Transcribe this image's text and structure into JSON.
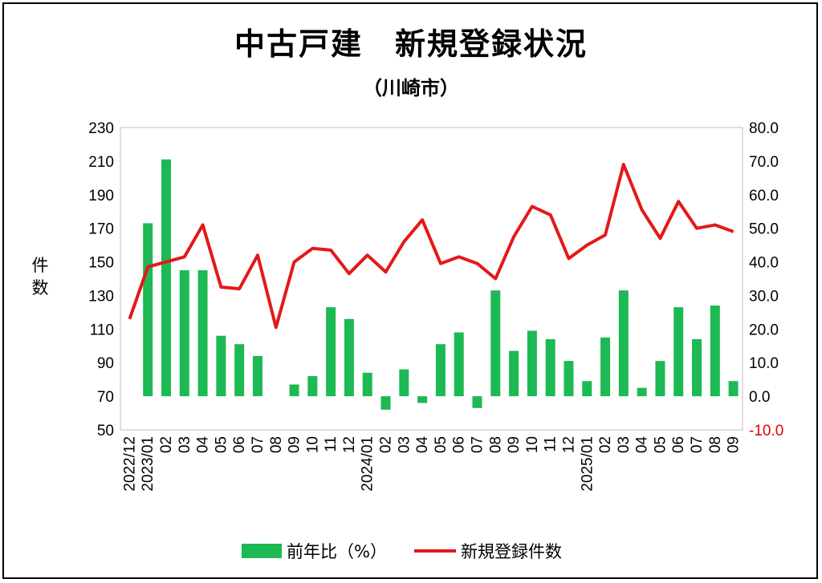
{
  "title": "中古戸建　新規登録状況",
  "subtitle": "（川崎市）",
  "colors": {
    "bar": "#1db954",
    "line": "#e31919",
    "negative_tick": "#e00000"
  },
  "chart_data": {
    "type": "bar+line",
    "categories": [
      "2022/12",
      "2023/01",
      "02",
      "03",
      "04",
      "05",
      "06",
      "07",
      "08",
      "09",
      "10",
      "11",
      "12",
      "2024/01",
      "02",
      "03",
      "04",
      "05",
      "06",
      "07",
      "08",
      "09",
      "10",
      "11",
      "12",
      "2025/01",
      "02",
      "03",
      "04",
      "05",
      "06",
      "07",
      "08",
      "09"
    ],
    "ylabel_left": "件数",
    "y_left": {
      "min": 50,
      "max": 230,
      "step": 20,
      "ticks": [
        "230",
        "210",
        "190",
        "170",
        "150",
        "130",
        "110",
        "90",
        "70",
        "50"
      ]
    },
    "y_right": {
      "min": -10,
      "max": 80,
      "step": 10,
      "ticks": [
        "80.0",
        "70.0",
        "60.0",
        "50.0",
        "40.0",
        "30.0",
        "20.0",
        "10.0",
        "0.0",
        "-10.0"
      ]
    },
    "series": [
      {
        "name": "前年比（%）",
        "type": "bar",
        "axis": "right",
        "values": [
          null,
          51.5,
          70.5,
          37.5,
          37.5,
          18.0,
          15.5,
          12.0,
          null,
          3.5,
          6.0,
          26.5,
          23.0,
          7.0,
          -4.0,
          8.0,
          -2.0,
          15.5,
          19.0,
          -3.5,
          31.5,
          13.5,
          19.5,
          17.0,
          10.5,
          4.5,
          17.5,
          31.5,
          2.5,
          10.5,
          26.5,
          17.0,
          27.0,
          4.5
        ]
      },
      {
        "name": "新規登録件数",
        "type": "line",
        "axis": "left",
        "values": [
          116,
          147,
          150,
          153,
          172,
          135,
          134,
          154,
          111,
          150,
          158,
          157,
          143,
          154,
          144,
          162,
          175,
          149,
          153,
          149,
          140,
          165,
          183,
          178,
          152,
          160,
          166,
          208,
          181,
          164,
          186,
          170,
          172,
          168
        ]
      }
    ],
    "legend_position": "bottom"
  }
}
